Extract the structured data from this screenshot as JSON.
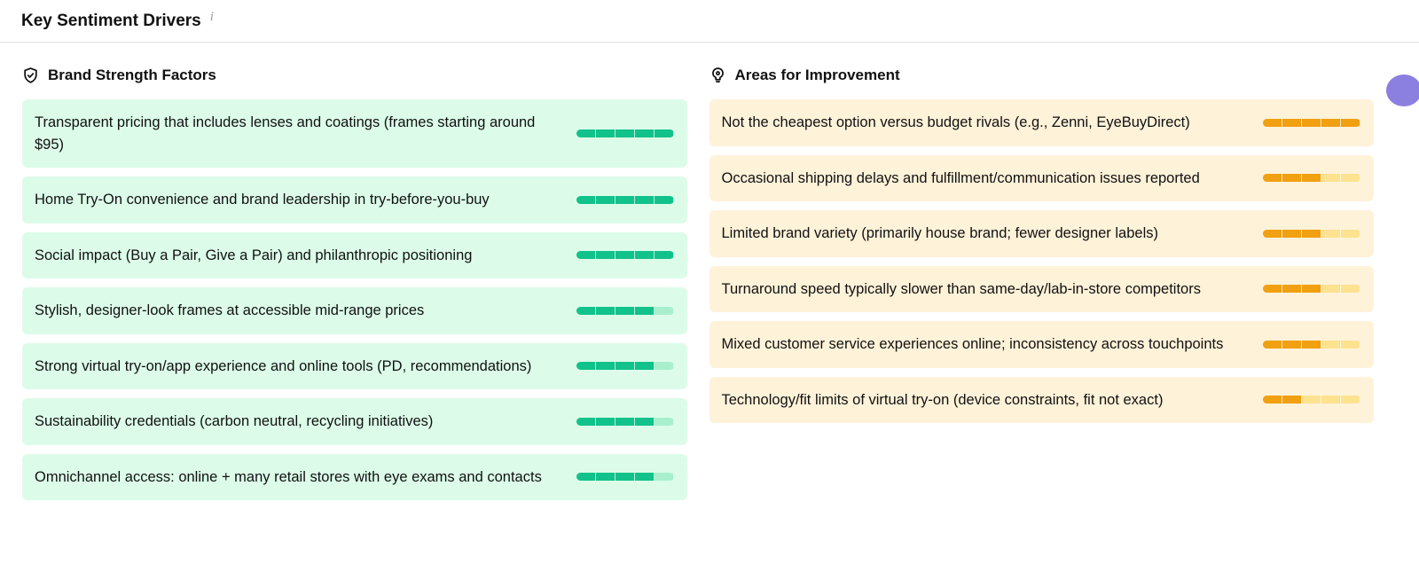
{
  "header": {
    "title": "Key Sentiment Drivers",
    "info": "i"
  },
  "strengths": {
    "title": "Brand Strength Factors",
    "max_score": 5,
    "items": [
      {
        "text": "Transparent pricing that includes lenses and coatings (frames starting around $95)",
        "score": 5
      },
      {
        "text": "Home Try-On convenience and brand leadership in try-before-you-buy",
        "score": 5
      },
      {
        "text": "Social impact (Buy a Pair, Give a Pair) and philanthropic positioning",
        "score": 5
      },
      {
        "text": "Stylish, designer-look frames at accessible mid-range prices",
        "score": 4
      },
      {
        "text": "Strong virtual try-on/app experience and online tools (PD, recommendations)",
        "score": 4
      },
      {
        "text": "Sustainability credentials (carbon neutral, recycling initiatives)",
        "score": 4
      },
      {
        "text": "Omnichannel access: online + many retail stores with eye exams and contacts",
        "score": 4
      }
    ]
  },
  "improvements": {
    "title": "Areas for Improvement",
    "max_score": 5,
    "items": [
      {
        "text": "Not the cheapest option versus budget rivals (e.g., Zenni, EyeBuyDirect)",
        "score": 5
      },
      {
        "text": "Occasional shipping delays and fulfillment/communication issues reported",
        "score": 3
      },
      {
        "text": "Limited brand variety (primarily house brand; fewer designer labels)",
        "score": 3
      },
      {
        "text": "Turnaround speed typically slower than same-day/lab-in-store competitors",
        "score": 3
      },
      {
        "text": "Mixed customer service experiences online; inconsistency across touchpoints",
        "score": 3
      },
      {
        "text": "Technology/fit limits of virtual try-on (device constraints, fit not exact)",
        "score": 2
      }
    ]
  }
}
